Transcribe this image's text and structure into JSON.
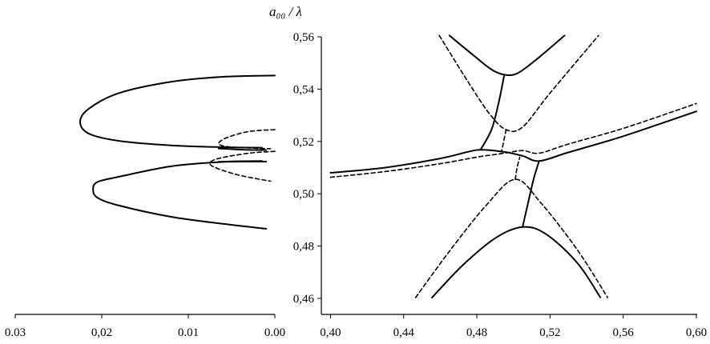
{
  "chart_data": {
    "type": "line",
    "title": "",
    "ylabel": "a₀₀ / λ",
    "ylim": [
      0.455,
      0.56
    ],
    "y_ticks": [
      "0,46",
      "0,48",
      "0,50",
      "0,52",
      "0,54",
      "0,56"
    ],
    "y_tick_values": [
      0.46,
      0.48,
      0.5,
      0.52,
      0.54,
      0.56
    ],
    "grid": false,
    "panels": [
      {
        "id": "left",
        "xlim": [
          0.03,
          0.0
        ],
        "reversed": true,
        "x_ticks": [
          "0.03",
          "0,02",
          "0.01",
          "0.00"
        ],
        "x_tick_values": [
          0.03,
          0.02,
          0.01,
          0.0
        ],
        "series": [
          {
            "style": "solid",
            "x": [
              0.0,
              0.006,
              0.012,
              0.018,
              0.0215,
              0.0225,
              0.0215,
              0.018,
              0.012,
              0.006,
              0.0015
            ],
            "y": [
              0.5452,
              0.5447,
              0.5428,
              0.5385,
              0.5325,
              0.5275,
              0.523,
              0.5202,
              0.5185,
              0.5178,
              0.5176
            ]
          },
          {
            "style": "solid",
            "x": [
              0.0015,
              0.006,
              0.012,
              0.018,
              0.0205,
              0.021,
              0.0205,
              0.018,
              0.012,
              0.006,
              0.001
            ],
            "y": [
              0.5125,
              0.5122,
              0.5105,
              0.5065,
              0.5045,
              0.5017,
              0.4985,
              0.4955,
              0.4912,
              0.4885,
              0.4866
            ]
          },
          {
            "style": "dashed",
            "x": [
              0.0,
              0.003,
              0.0055,
              0.0065,
              0.0055,
              0.003,
              0.0005
            ],
            "y": [
              0.5245,
              0.5238,
              0.5215,
              0.5192,
              0.518,
              0.5175,
              0.5172
            ]
          },
          {
            "style": "dashed",
            "x": [
              0.0,
              0.003,
              0.0065,
              0.0075,
              0.0065,
              0.004,
              0.0005
            ],
            "y": [
              0.5162,
              0.5155,
              0.5135,
              0.5115,
              0.5095,
              0.507,
              0.5048
            ]
          },
          {
            "style": "solid",
            "x": [
              0.0065,
              0.0035,
              0.001
            ],
            "y": [
              0.5173,
              0.5168,
              0.5167
            ]
          },
          {
            "style": "solid",
            "x": [
              0.0065,
              0.0035,
              0.001
            ],
            "y": [
              0.5122,
              0.5123,
              0.5123
            ]
          }
        ]
      },
      {
        "id": "right",
        "xlim": [
          0.395,
          0.6
        ],
        "reversed": false,
        "x_ticks": [
          "0,40",
          "0,44",
          "0,48",
          "0,52",
          "0,56",
          "0,60"
        ],
        "x_tick_values": [
          0.4,
          0.44,
          0.48,
          0.52,
          0.56,
          0.6
        ],
        "series": [
          {
            "style": "solid",
            "x": [
              0.4,
              0.43,
              0.46,
              0.475,
              0.482,
              0.495,
              0.505,
              0.514,
              0.53,
              0.56,
              0.6
            ],
            "y": [
              0.508,
              0.51,
              0.5135,
              0.516,
              0.5168,
              0.516,
              0.5145,
              0.5125,
              0.5158,
              0.522,
              0.5315
            ]
          },
          {
            "style": "dashed",
            "x": [
              0.4,
              0.43,
              0.46,
              0.48,
              0.495,
              0.505,
              0.514,
              0.53,
              0.56,
              0.6
            ],
            "y": [
              0.5063,
              0.5085,
              0.5115,
              0.514,
              0.5155,
              0.5165,
              0.5155,
              0.519,
              0.525,
              0.5345
            ]
          },
          {
            "style": "solid",
            "x": [
              0.465,
              0.478,
              0.488,
              0.495,
              0.502,
              0.512,
              0.528
            ],
            "y": [
              0.5605,
              0.553,
              0.5475,
              0.5455,
              0.546,
              0.551,
              0.5605
            ]
          },
          {
            "style": "solid",
            "x": [
              0.4555,
              0.472,
              0.49,
              0.505,
              0.518,
              0.535,
              0.5475
            ],
            "y": [
              0.4603,
              0.4725,
              0.483,
              0.4873,
              0.4845,
              0.4735,
              0.4604
            ]
          },
          {
            "style": "dashed",
            "x": [
              0.4595,
              0.475,
              0.487,
              0.496,
              0.505,
              0.52,
              0.5465
            ],
            "y": [
              0.5605,
              0.543,
              0.5305,
              0.5245,
              0.5255,
              0.5385,
              0.5605
            ]
          },
          {
            "style": "dashed",
            "x": [
              0.4465,
              0.465,
              0.485,
              0.501,
              0.515,
              0.535,
              0.5515
            ],
            "y": [
              0.4603,
              0.478,
              0.4955,
              0.5055,
              0.4965,
              0.4785,
              0.4603
            ]
          },
          {
            "style": "solid",
            "x": [
              0.495,
              0.492,
              0.488,
              0.482
            ],
            "y": [
              0.5455,
              0.535,
              0.5245,
              0.5168
            ]
          },
          {
            "style": "solid",
            "x": [
              0.505,
              0.508,
              0.511,
              0.514
            ],
            "y": [
              0.4873,
              0.4965,
              0.5055,
              0.5125
            ]
          },
          {
            "style": "dashed",
            "x": [
              0.496,
              0.4945,
              0.4935
            ],
            "y": [
              0.5245,
              0.5195,
              0.516
            ]
          },
          {
            "style": "dashed",
            "x": [
              0.501,
              0.502,
              0.5035
            ],
            "y": [
              0.5055,
              0.51,
              0.514
            ]
          }
        ]
      }
    ]
  }
}
